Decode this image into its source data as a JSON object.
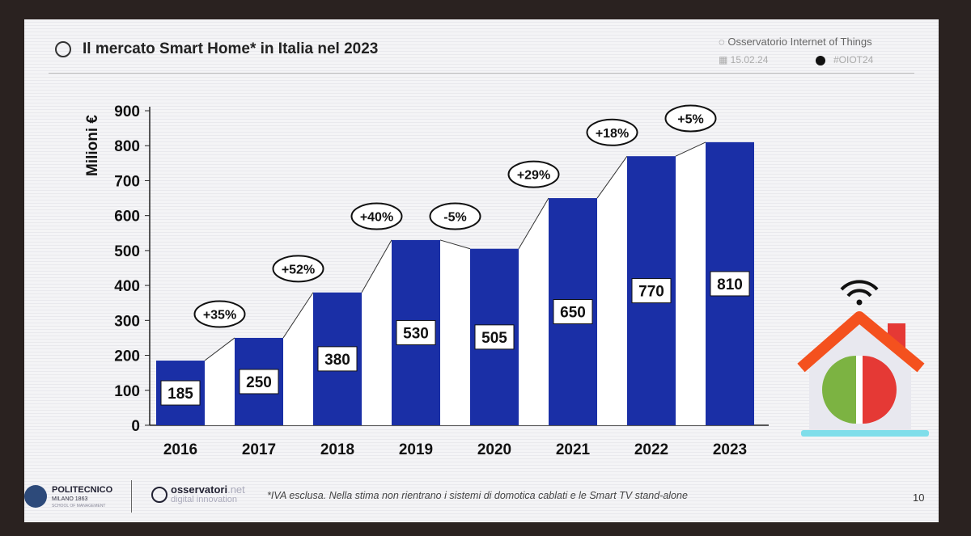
{
  "header": {
    "title": "Il mercato Smart Home* in Italia nel 2023",
    "organization": "Osservatorio Internet of Things",
    "date": "15.02.24",
    "hashtag": "#OIOT24"
  },
  "footer": {
    "logo1_name": "POLITECNICO",
    "logo1_sub": "MILANO 1863",
    "logo1_school": "SCHOOL OF MANAGEMENT",
    "logo2_name": "osservatori",
    "logo2_tld": ".net",
    "logo2_sub": "digital innovation",
    "note": "*IVA esclusa. Nella stima non rientrano i sistemi di domotica cablati e le Smart TV stand-alone",
    "page": "10"
  },
  "colors": {
    "bar": "#1a2fa6",
    "accent_red": "#e53935",
    "accent_green": "#7cb342",
    "roof": "#f4511e"
  },
  "chart_data": {
    "type": "bar",
    "title": "Il mercato Smart Home* in Italia nel 2023",
    "ylabel": "Milioni €",
    "xlabel": "",
    "ylim": [
      0,
      900
    ],
    "yticks": [
      0,
      100,
      200,
      300,
      400,
      500,
      600,
      700,
      800,
      900
    ],
    "categories": [
      "2016",
      "2017",
      "2018",
      "2019",
      "2020",
      "2021",
      "2022",
      "2023"
    ],
    "values": [
      185,
      250,
      380,
      530,
      505,
      650,
      770,
      810
    ],
    "growth_labels": [
      "+35%",
      "+52%",
      "+40%",
      "-5%",
      "+29%",
      "+18%",
      "+5%"
    ]
  }
}
